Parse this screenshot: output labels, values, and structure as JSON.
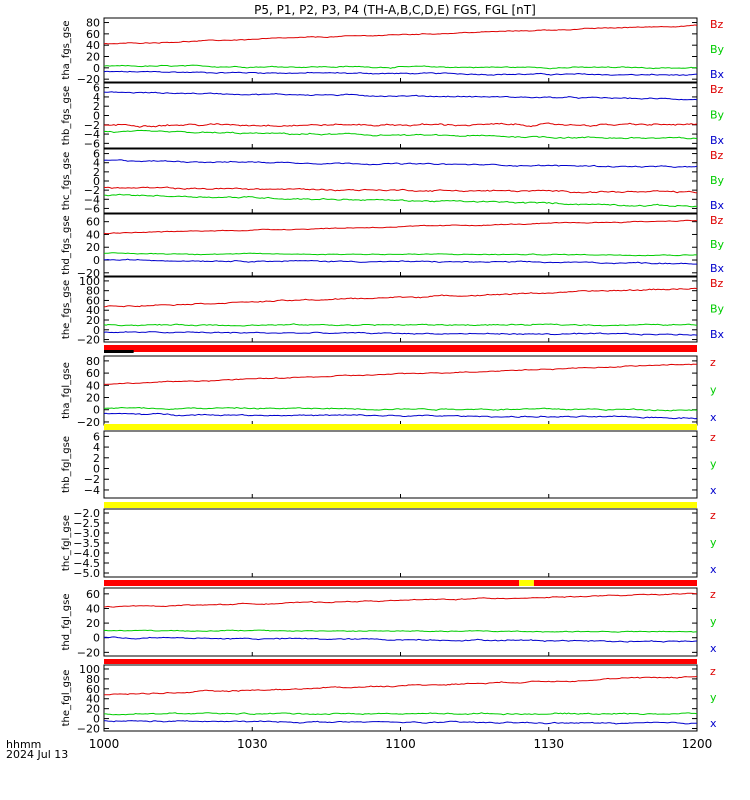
{
  "title": "P5, P1, P2, P3, P4 (TH-A,B,C,D,E) FGS, FGL [nT]",
  "time_axis": {
    "label_line1": "hhmm",
    "label_line2": "2024 Jul 13",
    "ticks": [
      "1000",
      "1030",
      "1100",
      "1130",
      "1200"
    ]
  },
  "colors": {
    "z": "#dd0000",
    "y": "#00cc00",
    "x": "#0000cc",
    "flag_red": "#ff0000",
    "flag_yellow": "#ffff00",
    "flag_black": "#000000"
  },
  "chart_data": [
    {
      "type": "line",
      "ylabel": "tha_fgs_gse",
      "ylim": [
        -25,
        88
      ],
      "yticks": [
        "80",
        "60",
        "40",
        "20",
        "0",
        "−20"
      ],
      "ytick_values": [
        80,
        60,
        40,
        20,
        0,
        -20
      ],
      "series": [
        {
          "name": "Bz",
          "color": "z",
          "x": [
            1000,
            1200
          ],
          "values": [
            42,
            75
          ],
          "noise": 0.3
        },
        {
          "name": "By",
          "color": "y",
          "x": [
            1000,
            1200
          ],
          "values": [
            3,
            0
          ],
          "noise": 0.4
        },
        {
          "name": "Bx",
          "color": "x",
          "x": [
            1000,
            1200
          ],
          "values": [
            -7,
            -13
          ],
          "noise": 0.4
        }
      ]
    },
    {
      "type": "line",
      "ylabel": "thb_fgs_gse",
      "ylim": [
        -7,
        7
      ],
      "yticks": [
        "6",
        "4",
        "2",
        "0",
        "−2",
        "−4",
        "−6"
      ],
      "ytick_values": [
        6,
        4,
        2,
        0,
        -2,
        -4,
        -6
      ],
      "series": [
        {
          "name": "Bz",
          "color": "z",
          "x": [
            1000,
            1200
          ],
          "values": [
            -2,
            -2
          ],
          "noise": 0.6
        },
        {
          "name": "By",
          "color": "y",
          "x": [
            1000,
            1200
          ],
          "values": [
            -3.5,
            -5
          ],
          "noise": 0.5
        },
        {
          "name": "Bx",
          "color": "x",
          "x": [
            1000,
            1200
          ],
          "values": [
            5,
            3.5
          ],
          "noise": 0.4
        }
      ]
    },
    {
      "type": "line",
      "ylabel": "thc_fgs_gse",
      "ylim": [
        -7,
        7
      ],
      "yticks": [
        "6",
        "4",
        "2",
        "0",
        "−2",
        "−4",
        "−6"
      ],
      "ytick_values": [
        6,
        4,
        2,
        0,
        -2,
        -4,
        -6
      ],
      "series": [
        {
          "name": "Bz",
          "color": "z",
          "x": [
            1000,
            1200
          ],
          "values": [
            -1.5,
            -2.5
          ],
          "noise": 0.5
        },
        {
          "name": "By",
          "color": "y",
          "x": [
            1000,
            1200
          ],
          "values": [
            -3,
            -5.5
          ],
          "noise": 0.5
        },
        {
          "name": "Bx",
          "color": "x",
          "x": [
            1000,
            1200
          ],
          "values": [
            4.5,
            3
          ],
          "noise": 0.4
        }
      ]
    },
    {
      "type": "line",
      "ylabel": "thd_fgs_gse",
      "ylim": [
        -25,
        72
      ],
      "yticks": [
        "60",
        "40",
        "20",
        "0",
        "−20"
      ],
      "ytick_values": [
        60,
        40,
        20,
        0,
        -20
      ],
      "series": [
        {
          "name": "Bz",
          "color": "z",
          "x": [
            1000,
            1200
          ],
          "values": [
            42,
            62
          ],
          "noise": 0.3
        },
        {
          "name": "By",
          "color": "y",
          "x": [
            1000,
            1200
          ],
          "values": [
            10,
            8
          ],
          "noise": 0.3
        },
        {
          "name": "Bx",
          "color": "x",
          "x": [
            1000,
            1200
          ],
          "values": [
            0,
            -5
          ],
          "noise": 0.4
        }
      ]
    },
    {
      "type": "line",
      "ylabel": "the_fgs_gse",
      "ylim": [
        -25,
        108
      ],
      "yticks": [
        "100",
        "80",
        "60",
        "40",
        "20",
        "0",
        "−20"
      ],
      "ytick_values": [
        100,
        80,
        60,
        40,
        20,
        0,
        -20
      ],
      "series": [
        {
          "name": "Bz",
          "color": "z",
          "x": [
            1000,
            1200
          ],
          "values": [
            48,
            85
          ],
          "noise": 0.4
        },
        {
          "name": "By",
          "color": "y",
          "x": [
            1000,
            1200
          ],
          "values": [
            10,
            10
          ],
          "noise": 0.4
        },
        {
          "name": "Bx",
          "color": "x",
          "x": [
            1000,
            1200
          ],
          "values": [
            -5,
            -10
          ],
          "noise": 0.4
        }
      ]
    },
    {
      "type": "line",
      "ylabel": "tha_fgl_gse",
      "ylim": [
        -25,
        88
      ],
      "yticks": [
        "80",
        "60",
        "40",
        "20",
        "0",
        "−20"
      ],
      "ytick_values": [
        80,
        60,
        40,
        20,
        0,
        -20
      ],
      "series": [
        {
          "name": "z",
          "color": "z",
          "x": [
            1000,
            1200
          ],
          "values": [
            42,
            75
          ],
          "noise": 0.3
        },
        {
          "name": "y",
          "color": "y",
          "x": [
            1000,
            1200
          ],
          "values": [
            3,
            0
          ],
          "noise": 0.4
        },
        {
          "name": "x",
          "color": "x",
          "x": [
            1000,
            1200
          ],
          "values": [
            -7,
            -13
          ],
          "noise": 0.4
        }
      ]
    },
    {
      "type": "line",
      "ylabel": "thb_fgl_gse",
      "ylim": [
        -5.5,
        7
      ],
      "yticks": [
        "6",
        "4",
        "2",
        "0",
        "−2",
        "−4"
      ],
      "ytick_values": [
        6,
        4,
        2,
        0,
        -2,
        -4
      ],
      "series": [
        {
          "name": "z",
          "color": "z",
          "x": [],
          "values": []
        },
        {
          "name": "y",
          "color": "y",
          "x": [],
          "values": []
        },
        {
          "name": "x",
          "color": "x",
          "x": [],
          "values": []
        }
      ]
    },
    {
      "type": "line",
      "ylabel": "thc_fgl_gse",
      "ylim": [
        -5.2,
        -1.8
      ],
      "yticks": [
        "−2.0",
        "−2.5",
        "−3.0",
        "−3.5",
        "−4.0",
        "−4.5",
        "−5.0"
      ],
      "ytick_values": [
        -2.0,
        -2.5,
        -3.0,
        -3.5,
        -4.0,
        -4.5,
        -5.0
      ],
      "series": [
        {
          "name": "z",
          "color": "z",
          "x": [],
          "values": []
        },
        {
          "name": "y",
          "color": "y",
          "x": [],
          "values": []
        },
        {
          "name": "x",
          "color": "x",
          "x": [],
          "values": []
        }
      ]
    },
    {
      "type": "line",
      "ylabel": "thd_fgl_gse",
      "ylim": [
        -25,
        68
      ],
      "yticks": [
        "60",
        "40",
        "20",
        "0",
        "−20"
      ],
      "ytick_values": [
        60,
        40,
        20,
        0,
        -20
      ],
      "series": [
        {
          "name": "z",
          "color": "z",
          "x": [
            1000,
            1200
          ],
          "values": [
            42,
            60
          ],
          "noise": 0.3
        },
        {
          "name": "y",
          "color": "y",
          "x": [
            1000,
            1200
          ],
          "values": [
            10,
            8
          ],
          "noise": 0.3
        },
        {
          "name": "x",
          "color": "x",
          "x": [
            1000,
            1200
          ],
          "values": [
            0,
            -5
          ],
          "noise": 0.4
        }
      ]
    },
    {
      "type": "line",
      "ylabel": "the_fgl_gse",
      "ylim": [
        -25,
        108
      ],
      "yticks": [
        "100",
        "80",
        "60",
        "40",
        "20",
        "0",
        "−20"
      ],
      "ytick_values": [
        100,
        80,
        60,
        40,
        20,
        0,
        -20
      ],
      "series": [
        {
          "name": "z",
          "color": "z",
          "x": [
            1000,
            1200
          ],
          "values": [
            48,
            85
          ],
          "noise": 0.4
        },
        {
          "name": "y",
          "color": "y",
          "x": [
            1000,
            1200
          ],
          "values": [
            10,
            10
          ],
          "noise": 0.4
        },
        {
          "name": "x",
          "color": "x",
          "x": [
            1000,
            1200
          ],
          "values": [
            -5,
            -10
          ],
          "noise": 0.4
        }
      ]
    }
  ],
  "flag_bars": [
    {
      "segments": [
        {
          "from": 1000,
          "to": 1200,
          "color": "flag_red"
        }
      ],
      "overlay": {
        "from": 1000,
        "to": 1006,
        "color": "flag_black"
      }
    },
    {
      "segments": [
        {
          "from": 1000,
          "to": 1200,
          "color": "flag_yellow"
        }
      ]
    },
    {
      "segments": [
        {
          "from": 1000,
          "to": 1200,
          "color": "flag_yellow"
        }
      ]
    },
    {
      "segments": [
        {
          "from": 1000,
          "to": 1084,
          "color": "flag_red"
        },
        {
          "from": 1084,
          "to": 1087,
          "color": "flag_yellow"
        },
        {
          "from": 1087,
          "to": 1200,
          "color": "flag_red"
        }
      ]
    },
    {
      "segments": [
        {
          "from": 1000,
          "to": 1200,
          "color": "flag_red"
        }
      ]
    }
  ]
}
